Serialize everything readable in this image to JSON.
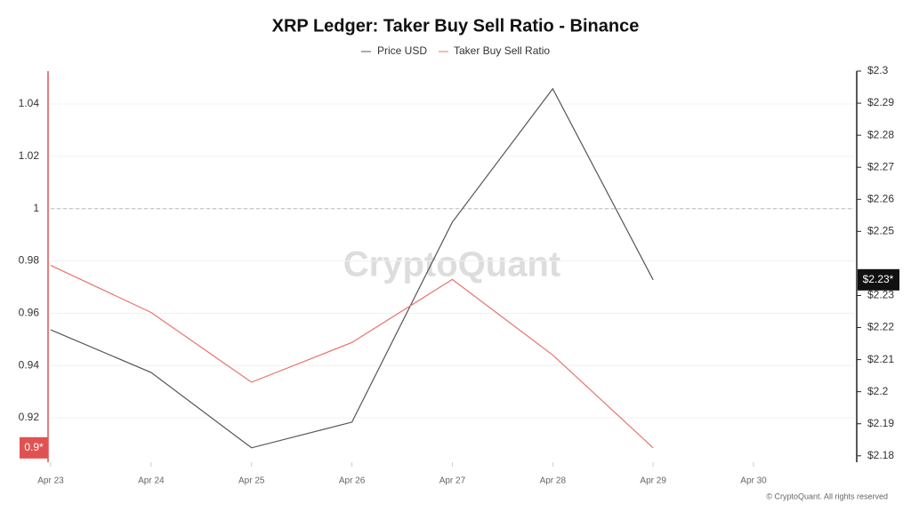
{
  "chart_data": {
    "type": "line",
    "title": "XRP Ledger: Taker Buy Sell Ratio - Binance",
    "watermark": "CryptoQuant",
    "footer": "© CryptoQuant. All rights reserved",
    "categories": [
      "Apr 23",
      "Apr 24",
      "Apr 25",
      "Apr 26",
      "Apr 27",
      "Apr 28",
      "Apr 29",
      "Apr 30"
    ],
    "series": [
      {
        "name": "Price USD",
        "color": "#555555",
        "axis": "y2",
        "values": [
          2.2193,
          2.206,
          2.1825,
          2.1905,
          2.2529,
          2.2945,
          2.2349,
          null
        ],
        "value_labels": [
          null,
          null,
          null,
          null,
          null,
          null,
          "$2.23*",
          null
        ]
      },
      {
        "name": "Taker Buy Sell Ratio",
        "color": "#e8736f",
        "values": [
          0.9783,
          0.9603,
          0.9336,
          0.9488,
          0.9729,
          0.944,
          0.9085,
          null
        ],
        "value_labels": [
          null,
          null,
          null,
          null,
          null,
          null,
          "0.9*",
          null
        ]
      }
    ],
    "ylim": [
      0.903,
      1.0526
    ],
    "yticks": [
      0.92,
      0.94,
      0.96,
      0.98,
      1,
      1.02,
      1.04
    ],
    "y_axis_color": "#e05252",
    "y2lim": [
      2.178,
      2.3
    ],
    "y2ticks": [
      {
        "value": 2.18,
        "label": "$2.18"
      },
      {
        "value": 2.19,
        "label": "$2.19"
      },
      {
        "value": 2.2,
        "label": "$2.2"
      },
      {
        "value": 2.21,
        "label": "$2.21"
      },
      {
        "value": 2.22,
        "label": "$2.22"
      },
      {
        "value": 2.23,
        "label": "$2.23"
      },
      {
        "value": 2.25,
        "label": "$2.25"
      },
      {
        "value": 2.26,
        "label": "$2.26"
      },
      {
        "value": 2.27,
        "label": "$2.27"
      },
      {
        "value": 2.28,
        "label": "$2.28"
      },
      {
        "value": 2.29,
        "label": "$2.29"
      },
      {
        "value": 2.3,
        "label": "$2.3"
      }
    ],
    "reference_line": 1,
    "grid": true
  }
}
